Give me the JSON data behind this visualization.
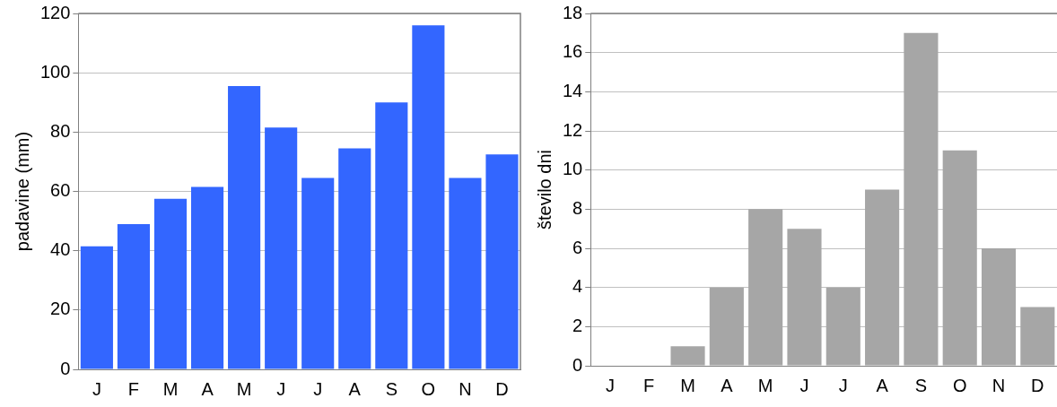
{
  "chart_data": [
    {
      "type": "bar",
      "ylabel": "padavine (mm)",
      "categories": [
        "J",
        "F",
        "M",
        "A",
        "M",
        "J",
        "J",
        "A",
        "S",
        "O",
        "N",
        "D"
      ],
      "values": [
        41.5,
        49,
        57.5,
        61.5,
        95.5,
        81.5,
        64.5,
        74.5,
        90,
        116,
        64.5,
        72.5
      ],
      "color": "#3366ff",
      "ylim": [
        0,
        120
      ],
      "yticks": [
        0,
        20,
        40,
        60,
        80,
        100,
        120
      ],
      "grid": "y",
      "legend": false
    },
    {
      "type": "bar",
      "ylabel": "število dni",
      "categories": [
        "J",
        "F",
        "M",
        "A",
        "M",
        "J",
        "J",
        "A",
        "S",
        "O",
        "N",
        "D"
      ],
      "values": [
        0,
        0,
        1,
        4,
        8,
        7,
        4,
        9,
        17,
        11,
        6,
        3
      ],
      "color": "#a6a6a6",
      "ylim": [
        0,
        18
      ],
      "yticks": [
        0,
        2,
        4,
        6,
        8,
        10,
        12,
        14,
        16,
        18
      ],
      "grid": "y",
      "legend": false
    }
  ]
}
